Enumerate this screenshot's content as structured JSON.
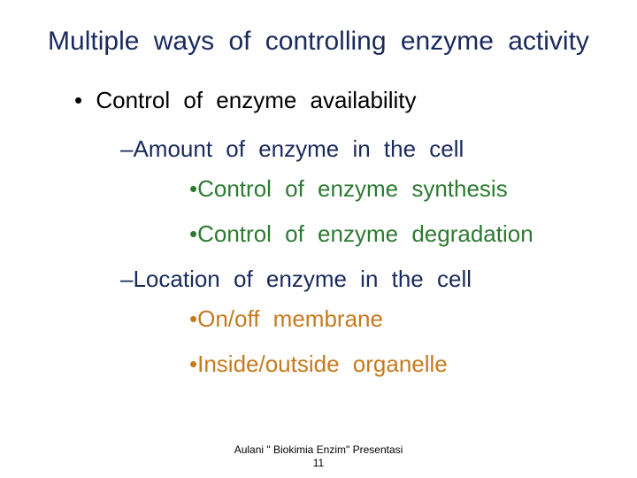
{
  "title": "Multiple ways of controlling enzyme activity",
  "bullets": {
    "l1_0": "Control of enzyme availability",
    "l2_0": "Amount of enzyme in the cell",
    "l3_0": "Control of enzyme synthesis",
    "l3_1": "Control of enzyme degradation",
    "l2_1": "Location of enzyme in the cell",
    "l3_2": "On/off membrane",
    "l3_3": "Inside/outside organelle"
  },
  "footer": {
    "credit": "Aulani \" Biokimia Enzim\" Presentasi",
    "pagenum": "11"
  },
  "colors": {
    "title": "#1a2a5c",
    "l1": "#000000",
    "l2_amount": "#1a2a5c",
    "l3_green": "#2e7a33",
    "l2_location": "#1a2a5c",
    "l3_orange": "#c67a1e",
    "background": "#ffffff"
  },
  "fontsize": {
    "title_pt": 30,
    "body_pt": 26,
    "footer_pt": 12
  }
}
